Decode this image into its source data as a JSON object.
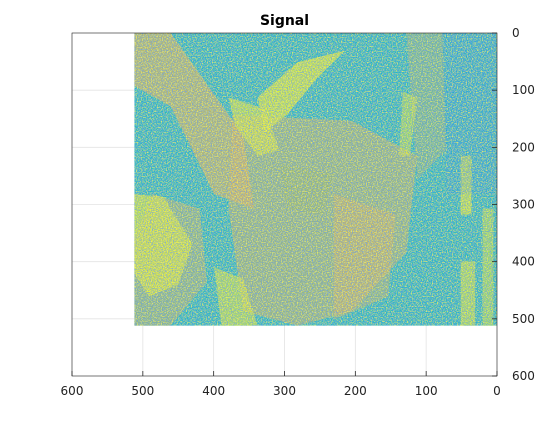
{
  "chart_data": {
    "type": "heatmap",
    "title": "Signal",
    "xlabel": "",
    "ylabel": "",
    "x_axis": {
      "reversed": true,
      "lim": [
        0,
        600
      ],
      "ticks": [
        "0",
        "100",
        "200",
        "300",
        "400",
        "500",
        "600"
      ],
      "position": "bottom"
    },
    "y_axis": {
      "reversed": true,
      "lim": [
        0,
        600
      ],
      "ticks": [
        "0",
        "100",
        "200",
        "300",
        "400",
        "500",
        "600"
      ],
      "position": "right"
    },
    "grid": true,
    "image_extent": {
      "x": [
        0,
        512
      ],
      "y": [
        0,
        512
      ]
    },
    "colormap": [
      "#3e26a8",
      "#2e8be8",
      "#18bcbf",
      "#a4be4c",
      "#f6b83e",
      "#f9fb14"
    ],
    "noise_colors": [
      "#3a5aa8",
      "#2c73c6",
      "#1f9aa8",
      "#35a98a",
      "#7ab46a",
      "#c9b04a",
      "#eeb43c",
      "#e6ee22"
    ]
  }
}
